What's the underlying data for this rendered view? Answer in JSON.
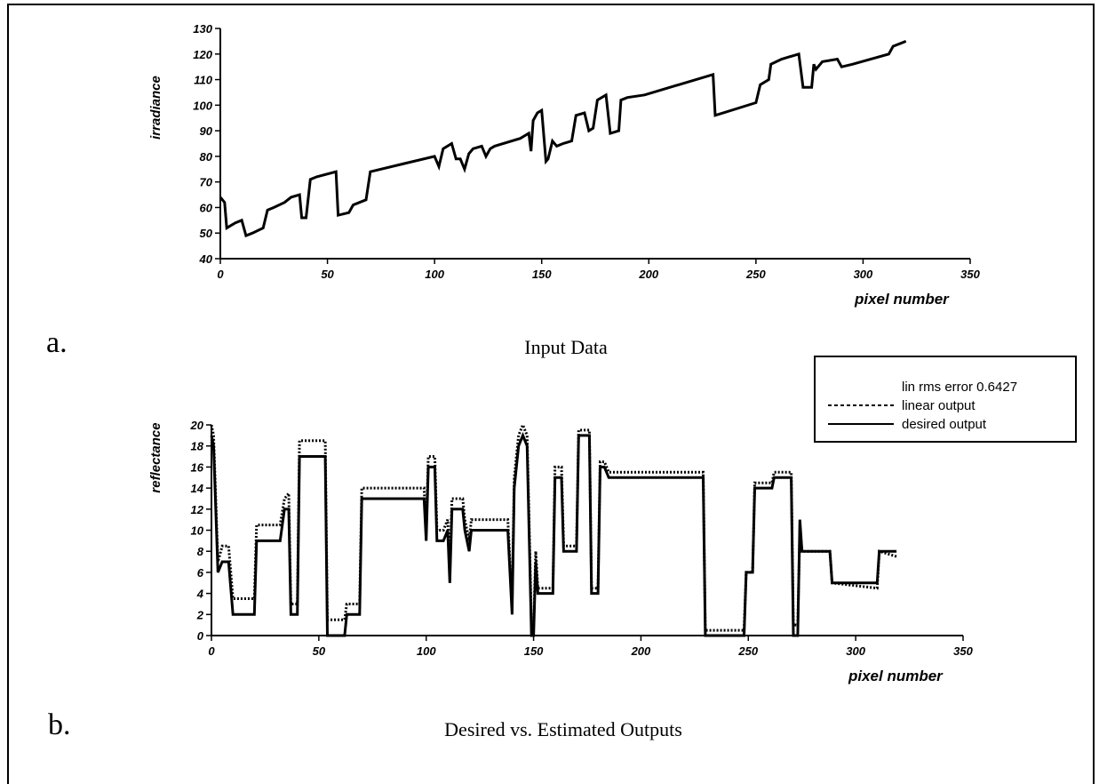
{
  "chart_data": [
    {
      "type": "line",
      "panel": "a.",
      "title": "Input Data",
      "xlabel": "pixel number",
      "ylabel": "irradiance",
      "xlim": [
        0,
        350
      ],
      "ylim": [
        40,
        130
      ],
      "xticks": [
        "0",
        "50",
        "100",
        "150",
        "200",
        "250",
        "300",
        "350"
      ],
      "yticks": [
        "40",
        "50",
        "60",
        "70",
        "80",
        "90",
        "100",
        "110",
        "120",
        "130"
      ],
      "grid": false,
      "series": [
        {
          "points": [
            [
              0,
              64
            ],
            [
              2,
              62
            ],
            [
              3,
              52
            ],
            [
              5,
              53
            ],
            [
              7,
              54
            ],
            [
              10,
              55
            ],
            [
              12,
              49
            ],
            [
              15,
              50
            ],
            [
              20,
              52
            ],
            [
              22,
              59
            ],
            [
              25,
              60
            ],
            [
              30,
              62
            ],
            [
              33,
              64
            ],
            [
              37,
              65
            ],
            [
              38,
              56
            ],
            [
              40,
              56
            ],
            [
              42,
              71
            ],
            [
              45,
              72
            ],
            [
              54,
              74
            ],
            [
              55,
              57
            ],
            [
              60,
              58
            ],
            [
              62,
              61
            ],
            [
              65,
              62
            ],
            [
              68,
              63
            ],
            [
              70,
              74
            ],
            [
              85,
              77
            ],
            [
              100,
              80
            ],
            [
              102,
              76
            ],
            [
              104,
              83
            ],
            [
              108,
              85
            ],
            [
              110,
              79
            ],
            [
              112,
              79
            ],
            [
              114,
              75
            ],
            [
              116,
              81
            ],
            [
              118,
              83
            ],
            [
              122,
              84
            ],
            [
              124,
              80
            ],
            [
              126,
              83
            ],
            [
              128,
              84
            ],
            [
              140,
              87
            ],
            [
              144,
              89
            ],
            [
              145,
              82
            ],
            [
              146,
              94
            ],
            [
              148,
              97
            ],
            [
              150,
              98
            ],
            [
              152,
              78
            ],
            [
              153,
              79
            ],
            [
              155,
              86
            ],
            [
              157,
              84
            ],
            [
              160,
              85
            ],
            [
              164,
              86
            ],
            [
              166,
              96
            ],
            [
              170,
              97
            ],
            [
              172,
              90
            ],
            [
              174,
              91
            ],
            [
              176,
              102
            ],
            [
              180,
              104
            ],
            [
              182,
              89
            ],
            [
              186,
              90
            ],
            [
              187,
              102
            ],
            [
              190,
              103
            ],
            [
              198,
              104
            ],
            [
              230,
              112
            ],
            [
              231,
              96
            ],
            [
              250,
              101
            ],
            [
              252,
              108
            ],
            [
              256,
              110
            ],
            [
              257,
              116
            ],
            [
              262,
              118
            ],
            [
              270,
              120
            ],
            [
              272,
              107
            ],
            [
              276,
              107
            ],
            [
              277,
              116
            ],
            [
              278,
              114
            ],
            [
              281,
              117
            ],
            [
              288,
              118
            ],
            [
              290,
              115
            ],
            [
              295,
              116
            ],
            [
              312,
              120
            ],
            [
              314,
              123
            ],
            [
              320,
              125
            ]
          ]
        }
      ]
    },
    {
      "type": "line",
      "panel": "b.",
      "title": "Desired vs. Estimated Outputs",
      "xlabel": "pixel number",
      "ylabel": "reflectance",
      "xlim": [
        0,
        350
      ],
      "ylim": [
        0,
        20
      ],
      "xticks": [
        "0",
        "50",
        "100",
        "150",
        "200",
        "250",
        "300",
        "350"
      ],
      "yticks": [
        "0",
        "2",
        "4",
        "6",
        "8",
        "10",
        "12",
        "14",
        "16",
        "18",
        "20"
      ],
      "grid": false,
      "legend": {
        "placement": "top-right",
        "header": "lin rms error 0.6427",
        "entries": [
          "linear output",
          "desired output"
        ]
      },
      "series": [
        {
          "name": "desired output",
          "style": "solid",
          "points": [
            [
              0,
              19
            ],
            [
              1,
              18
            ],
            [
              3,
              6
            ],
            [
              5,
              7
            ],
            [
              8,
              7
            ],
            [
              10,
              2
            ],
            [
              20,
              2
            ],
            [
              21,
              9
            ],
            [
              32,
              9
            ],
            [
              34,
              12
            ],
            [
              36,
              12
            ],
            [
              37,
              2
            ],
            [
              40,
              2
            ],
            [
              41,
              17
            ],
            [
              53,
              17
            ],
            [
              54,
              0
            ],
            [
              62,
              0
            ],
            [
              63,
              2
            ],
            [
              69,
              2
            ],
            [
              70,
              13
            ],
            [
              99,
              13
            ],
            [
              100,
              9
            ],
            [
              101,
              16
            ],
            [
              104,
              16
            ],
            [
              105,
              9
            ],
            [
              108,
              9
            ],
            [
              110,
              10
            ],
            [
              111,
              5
            ],
            [
              112,
              12
            ],
            [
              117,
              12
            ],
            [
              118,
              10
            ],
            [
              120,
              8
            ],
            [
              121,
              10
            ],
            [
              138,
              10
            ],
            [
              140,
              2
            ],
            [
              141,
              14
            ],
            [
              143,
              18
            ],
            [
              145,
              19
            ],
            [
              147,
              18
            ],
            [
              149,
              0
            ],
            [
              150,
              0
            ],
            [
              151,
              7
            ],
            [
              152,
              4
            ],
            [
              159,
              4
            ],
            [
              160,
              15
            ],
            [
              163,
              15
            ],
            [
              164,
              8
            ],
            [
              170,
              8
            ],
            [
              171,
              19
            ],
            [
              176,
              19
            ],
            [
              177,
              4
            ],
            [
              180,
              4
            ],
            [
              181,
              16
            ],
            [
              183,
              16
            ],
            [
              185,
              15
            ],
            [
              229,
              15
            ],
            [
              230,
              0
            ],
            [
              248,
              0
            ],
            [
              249,
              6
            ],
            [
              252,
              6
            ],
            [
              253,
              14
            ],
            [
              261,
              14
            ],
            [
              262,
              15
            ],
            [
              270,
              15
            ],
            [
              271,
              0
            ],
            [
              273,
              0
            ],
            [
              274,
              11
            ],
            [
              275,
              8
            ],
            [
              288,
              8
            ],
            [
              289,
              5
            ],
            [
              310,
              5
            ],
            [
              311,
              8
            ],
            [
              319,
              8
            ]
          ]
        },
        {
          "name": "linear output",
          "style": "dashed",
          "points": [
            [
              0,
              20
            ],
            [
              1,
              19
            ],
            [
              3,
              7
            ],
            [
              5,
              8.5
            ],
            [
              8,
              8.5
            ],
            [
              10,
              3.5
            ],
            [
              20,
              3.5
            ],
            [
              21,
              10.5
            ],
            [
              32,
              10.5
            ],
            [
              34,
              13
            ],
            [
              36,
              13.5
            ],
            [
              37,
              3
            ],
            [
              40,
              3
            ],
            [
              41,
              18.5
            ],
            [
              53,
              18.5
            ],
            [
              54,
              1.5
            ],
            [
              62,
              1.5
            ],
            [
              63,
              3
            ],
            [
              69,
              3
            ],
            [
              70,
              14
            ],
            [
              99,
              14
            ],
            [
              100,
              10
            ],
            [
              101,
              17
            ],
            [
              104,
              17
            ],
            [
              105,
              10
            ],
            [
              108,
              10
            ],
            [
              110,
              11
            ],
            [
              111,
              6
            ],
            [
              112,
              13
            ],
            [
              117,
              13
            ],
            [
              118,
              11
            ],
            [
              120,
              9
            ],
            [
              121,
              11
            ],
            [
              138,
              11
            ],
            [
              140,
              3
            ],
            [
              141,
              15
            ],
            [
              143,
              19
            ],
            [
              145,
              20
            ],
            [
              147,
              19
            ],
            [
              149,
              1
            ],
            [
              150,
              1
            ],
            [
              151,
              8
            ],
            [
              152,
              4.5
            ],
            [
              159,
              4.5
            ],
            [
              160,
              16
            ],
            [
              163,
              16
            ],
            [
              164,
              8.5
            ],
            [
              170,
              8.5
            ],
            [
              171,
              19.5
            ],
            [
              176,
              19.5
            ],
            [
              177,
              4.5
            ],
            [
              180,
              4.5
            ],
            [
              181,
              16.5
            ],
            [
              183,
              16.5
            ],
            [
              185,
              15.5
            ],
            [
              229,
              15.5
            ],
            [
              230,
              0.5
            ],
            [
              248,
              0.5
            ],
            [
              249,
              6
            ],
            [
              252,
              6
            ],
            [
              253,
              14.5
            ],
            [
              261,
              14.5
            ],
            [
              262,
              15.5
            ],
            [
              270,
              15.5
            ],
            [
              271,
              1
            ],
            [
              273,
              1
            ],
            [
              274,
              10
            ],
            [
              275,
              8
            ],
            [
              288,
              8
            ],
            [
              289,
              5
            ],
            [
              310,
              4.5
            ],
            [
              311,
              8
            ],
            [
              319,
              7.5
            ]
          ]
        }
      ]
    }
  ]
}
